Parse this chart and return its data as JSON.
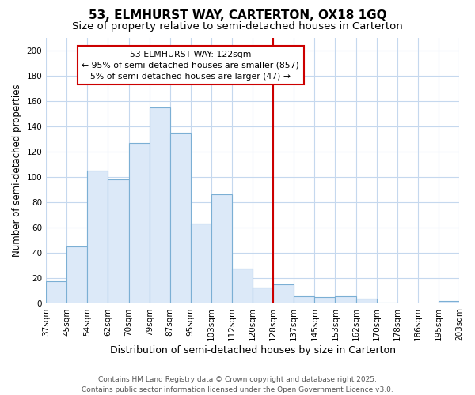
{
  "title": "53, ELMHURST WAY, CARTERTON, OX18 1GQ",
  "subtitle": "Size of property relative to semi-detached houses in Carterton",
  "xlabel": "Distribution of semi-detached houses by size in Carterton",
  "ylabel": "Number of semi-detached properties",
  "bar_labels": [
    "37sqm",
    "45sqm",
    "54sqm",
    "62sqm",
    "70sqm",
    "79sqm",
    "87sqm",
    "95sqm",
    "103sqm",
    "112sqm",
    "120sqm",
    "128sqm",
    "137sqm",
    "145sqm",
    "153sqm",
    "162sqm",
    "170sqm",
    "178sqm",
    "186sqm",
    "195sqm",
    "203sqm"
  ],
  "bar_heights": [
    18,
    45,
    105,
    98,
    127,
    155,
    135,
    63,
    86,
    28,
    13,
    15,
    6,
    5,
    6,
    4,
    1,
    0,
    0,
    2
  ],
  "bar_color": "#dce9f8",
  "bar_edge_color": "#7bafd4",
  "vline_x_index": 10,
  "vline_color": "#cc0000",
  "annotation_title": "53 ELMHURST WAY: 122sqm",
  "annotation_line1": "← 95% of semi-detached houses are smaller (857)",
  "annotation_line2": "5% of semi-detached houses are larger (47) →",
  "annotation_box_color": "#ffffff",
  "annotation_box_edge": "#cc0000",
  "ylim": [
    0,
    210
  ],
  "yticks": [
    0,
    20,
    40,
    60,
    80,
    100,
    120,
    140,
    160,
    180,
    200
  ],
  "footer_line1": "Contains HM Land Registry data © Crown copyright and database right 2025.",
  "footer_line2": "Contains public sector information licensed under the Open Government Licence v3.0.",
  "bg_color": "#ffffff",
  "grid_color": "#c5d8ee",
  "title_fontsize": 11,
  "subtitle_fontsize": 9.5,
  "xlabel_fontsize": 9,
  "ylabel_fontsize": 8.5,
  "tick_fontsize": 7.5,
  "footer_fontsize": 6.5
}
